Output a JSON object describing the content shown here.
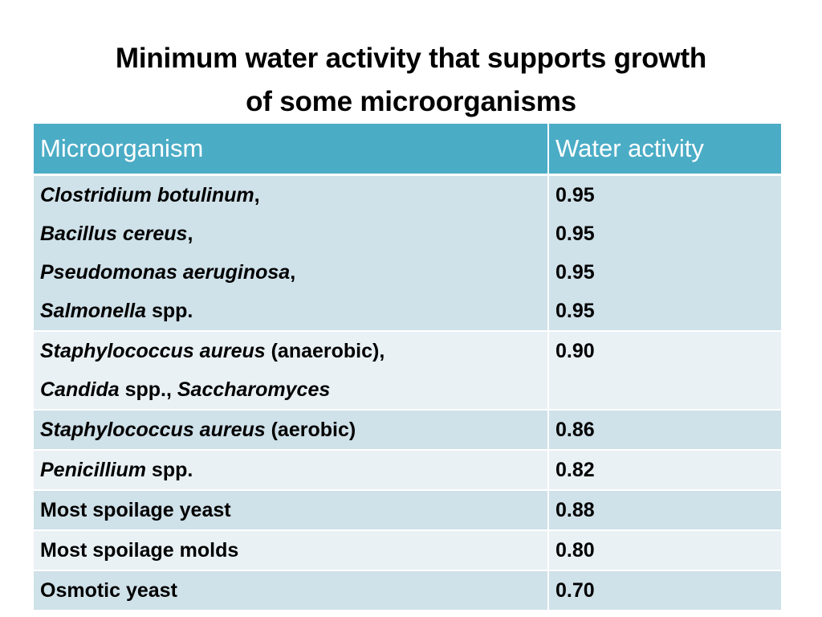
{
  "title": {
    "line1": "Minimum water activity that supports growth",
    "line2": "of some microorganisms"
  },
  "table": {
    "headers": [
      "Microorganism",
      "Water activity"
    ],
    "rows": [
      {
        "organisms": [
          [
            {
              "text": "Clostridium botulinum",
              "italic": true
            },
            {
              "text": ",",
              "italic": false
            }
          ],
          [
            {
              "text": "Bacillus cereus",
              "italic": true
            },
            {
              "text": ",",
              "italic": false
            }
          ],
          [
            {
              "text": "Pseudomonas aeruginosa",
              "italic": true
            },
            {
              "text": ",",
              "italic": false
            }
          ],
          [
            {
              "text": "Salmonella",
              "italic": true
            },
            {
              "text": " spp.",
              "italic": false
            }
          ]
        ],
        "values": [
          "0.95",
          "0.95",
          "0.95",
          "0.95"
        ]
      },
      {
        "organisms": [
          [
            {
              "text": "Staphylococcus aureus",
              "italic": true
            },
            {
              "text": " (anaerobic),",
              "italic": false
            }
          ],
          [
            {
              "text": "Candida",
              "italic": true
            },
            {
              "text": " spp., ",
              "italic": false
            },
            {
              "text": "Saccharomyces",
              "italic": true
            }
          ]
        ],
        "values": [
          "0.90"
        ]
      },
      {
        "organisms": [
          [
            {
              "text": "Staphylococcus aureus",
              "italic": true
            },
            {
              "text": " (aerobic)",
              "italic": false
            }
          ]
        ],
        "values": [
          "0.86"
        ]
      },
      {
        "organisms": [
          [
            {
              "text": "Penicillium",
              "italic": true
            },
            {
              "text": " spp.",
              "italic": false
            }
          ]
        ],
        "values": [
          "0.82"
        ]
      },
      {
        "organisms": [
          [
            {
              "text": "Most spoilage yeast",
              "italic": false
            }
          ]
        ],
        "values": [
          "0.88"
        ]
      },
      {
        "organisms": [
          [
            {
              "text": "Most spoilage molds",
              "italic": false
            }
          ]
        ],
        "values": [
          "0.80"
        ]
      },
      {
        "organisms": [
          [
            {
              "text": "Osmotic yeast",
              "italic": false
            }
          ]
        ],
        "values": [
          "0.70"
        ]
      }
    ]
  },
  "colors": {
    "header_bg": "#4bacc6",
    "row_dark": "#cfe1e9",
    "row_light": "#e9f1f5"
  }
}
